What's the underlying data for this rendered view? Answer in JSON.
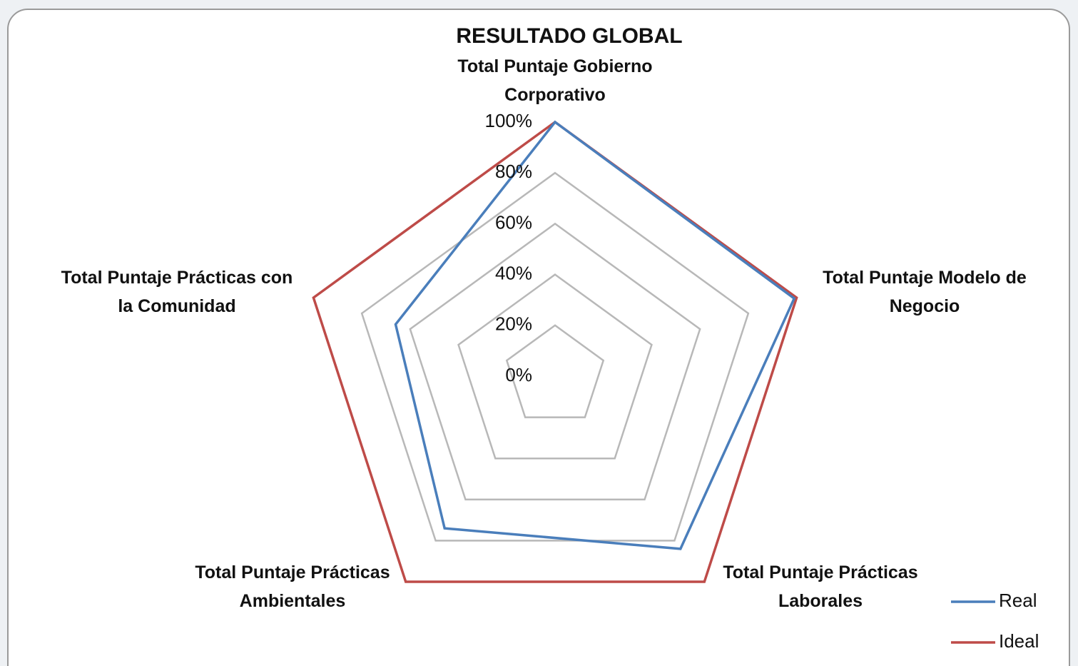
{
  "chart_data": {
    "type": "radar",
    "title": "RESULTADO GLOBAL",
    "categories": [
      "Total Puntaje Gobierno Corporativo",
      "Total Puntaje Modelo de Negocio",
      "Total Puntaje Prácticas Laborales",
      "Total Puntaje Prácticas Ambientales",
      "Total Puntaje Prácticas con la Comunidad"
    ],
    "series": [
      {
        "name": "Real",
        "color": "#4a7ebb",
        "values": [
          100,
          99,
          84,
          74,
          66
        ]
      },
      {
        "name": "Ideal",
        "color": "#be4b48",
        "values": [
          100,
          100,
          100,
          100,
          100
        ]
      }
    ],
    "ylim": [
      0,
      100
    ],
    "yticks": [
      {
        "value": 0,
        "label": "0%"
      },
      {
        "value": 20,
        "label": "20%"
      },
      {
        "value": 40,
        "label": "40%"
      },
      {
        "value": 60,
        "label": "60%"
      },
      {
        "value": 80,
        "label": "80%"
      },
      {
        "value": 100,
        "label": "100%"
      }
    ],
    "grid": true,
    "legend": "bottom-right"
  }
}
